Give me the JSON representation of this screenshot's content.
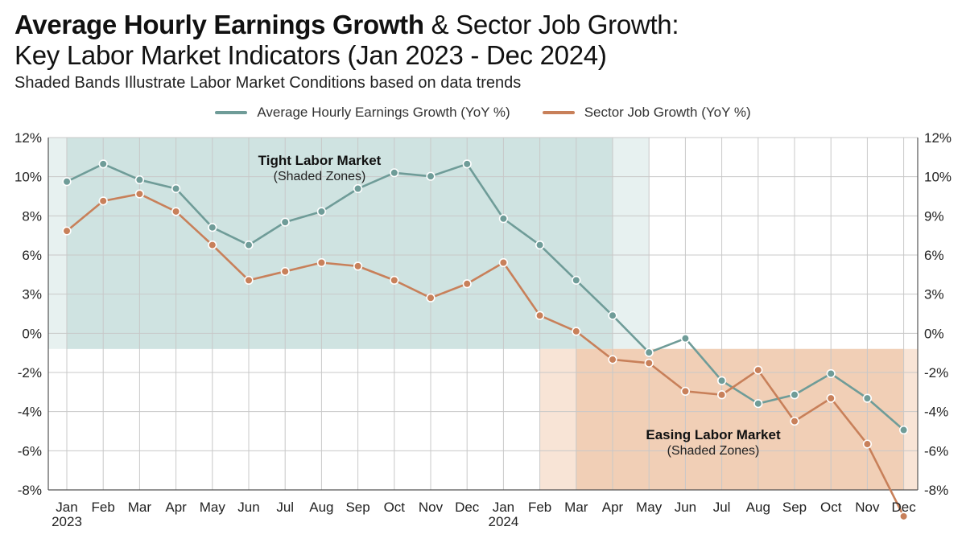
{
  "title": {
    "bold_part": "Average Hourly Earnings Growth",
    "rest_part": " & Sector Job Growth:",
    "line2": "Key Labor Market Indicators (Jan 2023 - Dec 2024)"
  },
  "subtitle": "Shaded Bands Illustrate Labor Market Conditions based on data trends",
  "colors": {
    "earnings": "#6f9c98",
    "jobs": "#c8805a",
    "tight_band": "#cfe3e1",
    "tight_band_light": "#e7f1f0",
    "easing_band": "#f1cfb6",
    "easing_band_light": "#f8e4d6"
  },
  "chart_data": {
    "type": "line",
    "categories": [
      "Jan",
      "Feb",
      "Mar",
      "Apr",
      "May",
      "Jun",
      "Jul",
      "Aug",
      "Sep",
      "Oct",
      "Nov",
      "Dec",
      "Jan",
      "Feb",
      "Mar",
      "Apr",
      "May",
      "Jun",
      "Jul",
      "Aug",
      "Sep",
      "Oct",
      "Nov",
      "Dec"
    ],
    "year_labels": [
      {
        "index": 0,
        "text": "2023"
      },
      {
        "index": 12,
        "text": "2024"
      }
    ],
    "series": [
      {
        "name": "Average Hourly Earnings Growth (YoY %)",
        "values": [
          9.5,
          10.5,
          9.6,
          9.1,
          6.9,
          5.9,
          7.2,
          7.8,
          9.1,
          10.0,
          9.8,
          10.5,
          7.4,
          5.9,
          3.9,
          1.9,
          -0.2,
          0.6,
          -1.8,
          -3.1,
          -2.6,
          -1.4,
          -2.8,
          -4.6
        ]
      },
      {
        "name": "Sector Job Growth (YoY %)",
        "values": [
          6.7,
          8.4,
          8.8,
          7.8,
          5.9,
          3.9,
          4.4,
          4.9,
          4.7,
          3.9,
          2.9,
          3.7,
          4.9,
          1.9,
          1.0,
          -0.6,
          -0.8,
          -2.4,
          -2.6,
          -1.2,
          -4.1,
          -2.8,
          -5.4,
          -9.5
        ]
      }
    ],
    "y_left": {
      "ticks": [
        "12%",
        "10%",
        "8%",
        "6%",
        "3%",
        "0%",
        "-2%",
        "-4%",
        "-6%",
        "-8%"
      ],
      "ylim": [
        -8,
        12
      ]
    },
    "y_right": {
      "ticks": [
        "12%",
        "10%",
        "9%",
        "6%",
        "3%",
        "0%",
        "-2%",
        "-4%",
        "-6%",
        "-8%"
      ]
    },
    "grid": true,
    "legend_position": "top-center",
    "bands": [
      {
        "name": "tight",
        "label": "Tight Labor Market",
        "sublabel": "(Shaded Zones)"
      },
      {
        "name": "easing",
        "label": "Easing Labor Market",
        "sublabel": "(Shaded Zones)"
      }
    ]
  }
}
